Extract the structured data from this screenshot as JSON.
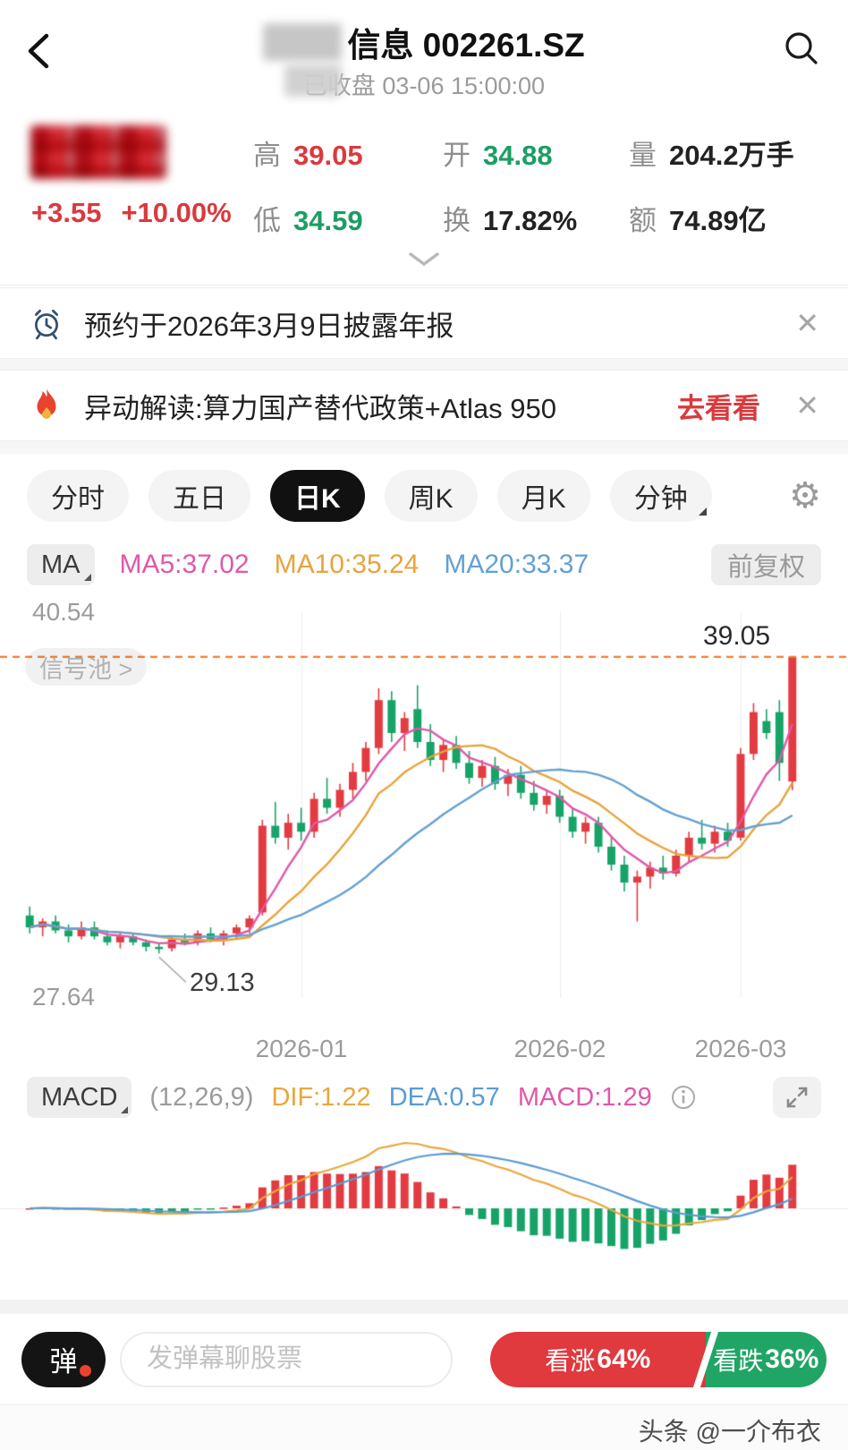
{
  "header": {
    "title": "信息 002261.SZ",
    "subtitle": "已收盘 03-06 15:00:00"
  },
  "quote": {
    "change": "+3.55",
    "change_pct": "+10.00%",
    "high_label": "高",
    "high": "39.05",
    "low_label": "低",
    "low": "34.59",
    "open_label": "开",
    "open": "34.88",
    "turnover_label": "换",
    "turnover": "17.82%",
    "volume_label": "量",
    "volume": "204.2万手",
    "amount_label": "额",
    "amount": "74.89亿"
  },
  "notices": [
    {
      "text": "预约于2026年3月9日披露年报",
      "close": "✕"
    },
    {
      "text": "异动解读:算力国产替代政策+Atlas 950",
      "action": "去看看",
      "close": "✕"
    }
  ],
  "tabs": [
    {
      "label": "分时"
    },
    {
      "label": "五日"
    },
    {
      "label": "日K"
    },
    {
      "label": "周K"
    },
    {
      "label": "月K"
    },
    {
      "label": "分钟"
    }
  ],
  "gear_icon": "⚙",
  "ma_bar": {
    "label": "MA",
    "ma5": "MA5:37.02",
    "ma10": "MA10:35.24",
    "ma20": "MA20:33.37",
    "adjust": "前复权"
  },
  "chart_labels": {
    "y_top": "40.54",
    "y_bottom": "27.64",
    "signal_pool": "信号池 >",
    "dash_label": "39.05",
    "low_label": "29.13",
    "x0": "2026-01",
    "x1": "2026-02",
    "x2": "2026-03"
  },
  "macd_bar": {
    "label": "MACD",
    "params": "(12,26,9)",
    "dif": "DIF:1.22",
    "dea": "DEA:0.57",
    "macd": "MACD:1.29"
  },
  "bottom": {
    "danmu": "弹",
    "input_placeholder": "发弹幕聊股票",
    "bull_label": "看涨",
    "bull_pct": "64%",
    "bear_label": "看跌",
    "bear_pct": "36%"
  },
  "watermark": "头条 @一介布衣",
  "chart_data": {
    "type": "candlestick",
    "title": "日K 002261.SZ",
    "ylim": [
      27.64,
      40.54
    ],
    "y_axis_labels": [
      "40.54",
      "27.64"
    ],
    "x_labels": [
      "2026-01",
      "2026-02",
      "2026-03"
    ],
    "x_label_indices": [
      21,
      41,
      55
    ],
    "dash_line": 39.05,
    "low_annotation": {
      "index": 10,
      "price": 29.13,
      "label": "29.13"
    },
    "last_day": {
      "open": 34.88,
      "high": 39.05,
      "low": 34.59,
      "close": 39.05,
      "change": 3.55,
      "change_pct": 10.0
    },
    "ma_periods": [
      5,
      10,
      20
    ],
    "ma_values_shown": {
      "ma5": 37.02,
      "ma10": 35.24,
      "ma20": 33.37
    },
    "macd": {
      "params": [
        12,
        26,
        9
      ],
      "dif": 1.22,
      "dea": 0.57,
      "macd": 1.29
    },
    "colors": {
      "up": "#e23b41",
      "down": "#17a368",
      "ma5": "#e058a8",
      "ma10": "#e8a33d",
      "ma20": "#64a0d2",
      "dash": "#f07f30",
      "dif": "#e8a83d",
      "dea": "#5b9bd5",
      "grid": "#ededed"
    },
    "candles": [
      [
        30.4,
        30.7,
        29.8,
        30.0
      ],
      [
        30.0,
        30.3,
        29.7,
        30.2
      ],
      [
        30.2,
        30.4,
        29.8,
        29.9
      ],
      [
        29.9,
        30.1,
        29.5,
        29.7
      ],
      [
        29.7,
        30.2,
        29.6,
        30.0
      ],
      [
        30.0,
        30.2,
        29.6,
        29.7
      ],
      [
        29.7,
        29.9,
        29.4,
        29.5
      ],
      [
        29.5,
        29.8,
        29.3,
        29.7
      ],
      [
        29.7,
        29.8,
        29.4,
        29.5
      ],
      [
        29.5,
        29.6,
        29.2,
        29.35
      ],
      [
        29.35,
        29.5,
        29.13,
        29.3
      ],
      [
        29.3,
        29.7,
        29.2,
        29.6
      ],
      [
        29.6,
        29.8,
        29.4,
        29.5
      ],
      [
        29.5,
        29.9,
        29.4,
        29.8
      ],
      [
        29.8,
        30.0,
        29.5,
        29.6
      ],
      [
        29.6,
        29.9,
        29.4,
        29.8
      ],
      [
        29.8,
        30.1,
        29.6,
        30.0
      ],
      [
        30.0,
        30.4,
        29.8,
        30.3
      ],
      [
        30.5,
        33.6,
        30.4,
        33.4
      ],
      [
        33.4,
        34.2,
        32.8,
        33.0
      ],
      [
        33.0,
        33.8,
        32.6,
        33.5
      ],
      [
        33.5,
        34.0,
        32.9,
        33.2
      ],
      [
        33.2,
        34.5,
        33.0,
        34.3
      ],
      [
        34.3,
        35.0,
        33.8,
        34.0
      ],
      [
        34.0,
        34.8,
        33.7,
        34.6
      ],
      [
        34.6,
        35.5,
        34.3,
        35.2
      ],
      [
        35.2,
        36.2,
        34.9,
        36.0
      ],
      [
        36.0,
        38.0,
        35.8,
        37.6
      ],
      [
        37.6,
        37.9,
        36.2,
        36.5
      ],
      [
        36.5,
        37.2,
        35.9,
        37.0
      ],
      [
        37.3,
        38.1,
        36.0,
        36.2
      ],
      [
        36.2,
        36.8,
        35.4,
        35.6
      ],
      [
        35.6,
        36.3,
        35.2,
        36.1
      ],
      [
        36.1,
        36.4,
        35.3,
        35.5
      ],
      [
        35.5,
        35.9,
        34.8,
        35.0
      ],
      [
        35.0,
        35.6,
        34.7,
        35.4
      ],
      [
        35.4,
        35.7,
        34.6,
        34.8
      ],
      [
        34.8,
        35.3,
        34.4,
        35.1
      ],
      [
        35.1,
        35.4,
        34.3,
        34.5
      ],
      [
        34.5,
        34.9,
        33.9,
        34.1
      ],
      [
        34.1,
        34.6,
        33.8,
        34.4
      ],
      [
        34.4,
        34.6,
        33.5,
        33.7
      ],
      [
        33.7,
        34.0,
        33.0,
        33.2
      ],
      [
        33.2,
        33.7,
        32.8,
        33.5
      ],
      [
        33.5,
        33.7,
        32.5,
        32.7
      ],
      [
        32.7,
        33.0,
        31.9,
        32.1
      ],
      [
        32.1,
        32.4,
        31.2,
        31.5
      ],
      [
        31.5,
        31.9,
        30.2,
        31.7
      ],
      [
        31.7,
        32.2,
        31.3,
        32.0
      ],
      [
        32.0,
        32.4,
        31.6,
        31.8
      ],
      [
        31.8,
        32.6,
        31.7,
        32.4
      ],
      [
        32.4,
        33.2,
        32.2,
        33.0
      ],
      [
        33.0,
        33.6,
        32.6,
        32.8
      ],
      [
        32.8,
        33.4,
        32.5,
        33.2
      ],
      [
        33.2,
        33.5,
        32.7,
        32.9
      ],
      [
        33.0,
        36.0,
        32.9,
        35.8
      ],
      [
        35.8,
        37.5,
        35.6,
        37.2
      ],
      [
        36.9,
        37.3,
        36.3,
        36.5
      ],
      [
        37.2,
        37.6,
        34.9,
        35.5
      ],
      [
        34.88,
        39.05,
        34.59,
        39.05
      ]
    ]
  }
}
